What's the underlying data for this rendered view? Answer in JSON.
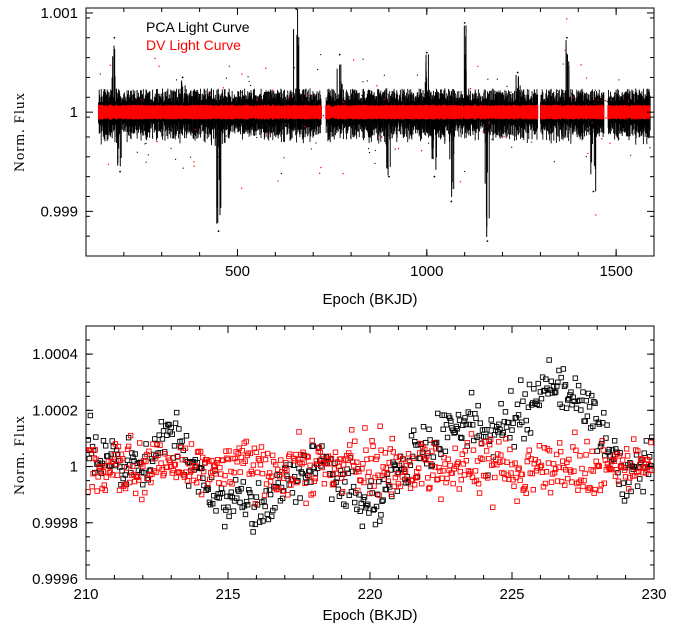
{
  "colors": {
    "pca": "#000000",
    "dv": "#ff0000"
  },
  "chart_data": [
    {
      "type": "scatter",
      "title": "",
      "xlabel": "Epoch (BKJD)",
      "ylabel": "Norm. Flux",
      "xlim": [
        100,
        1600
      ],
      "ylim": [
        0.99855,
        1.00105
      ],
      "xticks": [
        500,
        1000,
        1500
      ],
      "xtick_labels": [
        "500",
        "1000",
        "1500"
      ],
      "yticks": [
        0.999,
        1.0,
        1.001
      ],
      "ytick_labels": [
        "0.999",
        "1",
        "1.001"
      ],
      "grid": false,
      "legend_position": "top-left",
      "series": [
        {
          "name": "PCA Light Curve",
          "color": "#000000",
          "x_range": [
            133,
            1590
          ],
          "baseline": 1.0,
          "typical_scatter": 0.00012,
          "extremes": [
            {
              "x": 175,
              "y": 1.00075
            },
            {
              "x": 190,
              "y": 0.9994
            },
            {
              "x": 355,
              "y": 1.00035
            },
            {
              "x": 448,
              "y": 0.99955
            },
            {
              "x": 450,
              "y": 0.9988
            },
            {
              "x": 655,
              "y": 1.00115
            },
            {
              "x": 770,
              "y": 1.00058
            },
            {
              "x": 900,
              "y": 0.99935
            },
            {
              "x": 1000,
              "y": 1.0006
            },
            {
              "x": 1020,
              "y": 0.99935
            },
            {
              "x": 1065,
              "y": 0.9991
            },
            {
              "x": 1100,
              "y": 1.0009
            },
            {
              "x": 1160,
              "y": 0.9987
            },
            {
              "x": 1240,
              "y": 1.0004
            },
            {
              "x": 1370,
              "y": 1.00075
            },
            {
              "x": 1440,
              "y": 0.9992
            }
          ]
        },
        {
          "name": "DV Light Curve",
          "color": "#ff0000",
          "x_range": [
            133,
            1590
          ],
          "baseline": 1.0,
          "typical_scatter": 6e-05,
          "gaps": [
            [
              722,
              733
            ],
            [
              1293,
              1300
            ],
            [
              1468,
              1478
            ]
          ]
        }
      ]
    },
    {
      "type": "scatter",
      "title": "",
      "xlabel": "Epoch (BKJD)",
      "ylabel": "Norm. Flux",
      "xlim": [
        210,
        230
      ],
      "ylim": [
        0.9996,
        1.0005
      ],
      "xticks": [
        210,
        215,
        220,
        225,
        230
      ],
      "xtick_labels": [
        "210",
        "215",
        "220",
        "225",
        "230"
      ],
      "yticks": [
        0.9996,
        0.9998,
        1.0,
        1.0002,
        1.0004
      ],
      "ytick_labels": [
        "0.9996",
        "0.9998",
        "1",
        "1.0002",
        "1.0004"
      ],
      "grid": false,
      "series": [
        {
          "name": "PCA Light Curve",
          "color": "#000000",
          "marker": "open-square",
          "trend": [
            {
              "x": 210.0,
              "y": 1.00006
            },
            {
              "x": 211.0,
              "y": 1.00001
            },
            {
              "x": 212.0,
              "y": 0.99998
            },
            {
              "x": 212.9,
              "y": 1.00013
            },
            {
              "x": 213.6,
              "y": 1.00001
            },
            {
              "x": 214.5,
              "y": 0.99992
            },
            {
              "x": 215.3,
              "y": 0.99989
            },
            {
              "x": 216.3,
              "y": 0.99985
            },
            {
              "x": 217.3,
              "y": 0.99995
            },
            {
              "x": 218.3,
              "y": 1.00004
            },
            {
              "x": 219.0,
              "y": 0.99995
            },
            {
              "x": 219.8,
              "y": 0.99986
            },
            {
              "x": 220.5,
              "y": 0.9999
            },
            {
              "x": 221.5,
              "y": 1.00004
            },
            {
              "x": 222.5,
              "y": 1.0001
            },
            {
              "x": 223.3,
              "y": 1.00018
            },
            {
              "x": 224.2,
              "y": 1.0001
            },
            {
              "x": 225.0,
              "y": 1.00016
            },
            {
              "x": 226.3,
              "y": 1.0003
            },
            {
              "x": 227.2,
              "y": 1.00026
            },
            {
              "x": 228.2,
              "y": 1.00012
            },
            {
              "x": 229.0,
              "y": 0.99994
            },
            {
              "x": 230.0,
              "y": 1.00004
            }
          ]
        },
        {
          "name": "DV Light Curve",
          "color": "#ff0000",
          "marker": "open-square",
          "baseline": 1.0,
          "typical_scatter": 5e-05
        }
      ]
    }
  ],
  "legend": {
    "items": [
      {
        "label": "PCA Light Curve",
        "color": "#000000"
      },
      {
        "label": "DV Light Curve",
        "color": "#ff0000"
      }
    ]
  }
}
